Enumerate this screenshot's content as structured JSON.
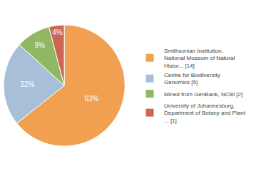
{
  "chart_data": {
    "type": "pie",
    "categories": [
      "Smithsonian Institution,\nNational Museum of Natural\nHistor... [14]",
      "Centre for Biodiversity\nGenomics [5]",
      "Mined from GenBank, NCBI [2]",
      "University of Johannesburg,\nDepartment of Botany and Plant\n... [1]"
    ],
    "values": [
      63,
      22,
      9,
      4
    ],
    "value_labels": [
      "63%",
      "22%",
      "9%",
      "4%"
    ],
    "colors": [
      "#f0a050",
      "#a8bfd8",
      "#90b860",
      "#cc6655"
    ],
    "data_labels": true,
    "legend": "right"
  }
}
